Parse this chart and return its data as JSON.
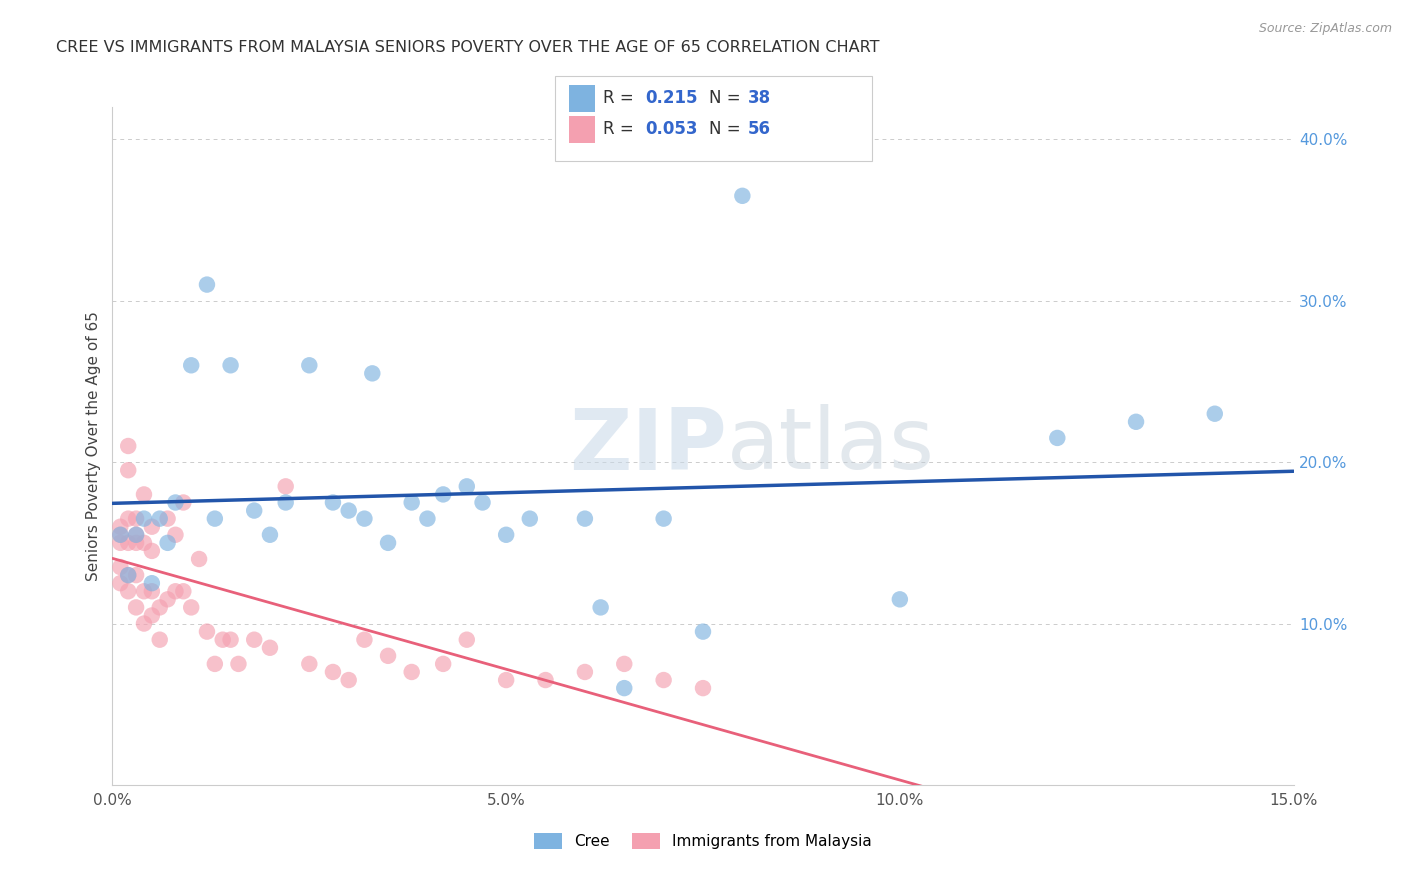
{
  "title": "CREE VS IMMIGRANTS FROM MALAYSIA SENIORS POVERTY OVER THE AGE OF 65 CORRELATION CHART",
  "source": "Source: ZipAtlas.com",
  "ylabel": "Seniors Poverty Over the Age of 65",
  "xlim": [
    0,
    0.15
  ],
  "ylim": [
    0,
    0.42
  ],
  "x_ticks": [
    0.0,
    0.05,
    0.1,
    0.15
  ],
  "x_tick_labels": [
    "0.0%",
    "5.0%",
    "10.0%",
    "15.0%"
  ],
  "y_ticks_right": [
    0.1,
    0.2,
    0.3,
    0.4
  ],
  "y_tick_labels_right": [
    "10.0%",
    "20.0%",
    "30.0%",
    "40.0%"
  ],
  "cree_R": 0.215,
  "cree_N": 38,
  "malaysia_R": 0.053,
  "malaysia_N": 56,
  "cree_color": "#7EB3E0",
  "malaysia_color": "#F4A0B0",
  "cree_line_color": "#2255AA",
  "malaysia_line_color": "#E8607A",
  "cree_x": [
    0.001,
    0.002,
    0.003,
    0.004,
    0.005,
    0.006,
    0.007,
    0.008,
    0.01,
    0.012,
    0.013,
    0.015,
    0.018,
    0.02,
    0.022,
    0.025,
    0.028,
    0.03,
    0.032,
    0.033,
    0.035,
    0.038,
    0.04,
    0.042,
    0.045,
    0.047,
    0.05,
    0.053,
    0.06,
    0.062,
    0.065,
    0.07,
    0.075,
    0.08,
    0.1,
    0.12,
    0.13,
    0.14
  ],
  "cree_y": [
    0.155,
    0.13,
    0.155,
    0.165,
    0.125,
    0.165,
    0.15,
    0.175,
    0.26,
    0.31,
    0.165,
    0.26,
    0.17,
    0.155,
    0.175,
    0.26,
    0.175,
    0.17,
    0.165,
    0.255,
    0.15,
    0.175,
    0.165,
    0.18,
    0.185,
    0.175,
    0.155,
    0.165,
    0.165,
    0.11,
    0.06,
    0.165,
    0.095,
    0.365,
    0.115,
    0.215,
    0.225,
    0.23
  ],
  "malaysia_x": [
    0.001,
    0.001,
    0.001,
    0.001,
    0.001,
    0.002,
    0.002,
    0.002,
    0.002,
    0.002,
    0.002,
    0.003,
    0.003,
    0.003,
    0.003,
    0.003,
    0.004,
    0.004,
    0.004,
    0.004,
    0.005,
    0.005,
    0.005,
    0.005,
    0.006,
    0.006,
    0.007,
    0.007,
    0.008,
    0.008,
    0.009,
    0.009,
    0.01,
    0.011,
    0.012,
    0.013,
    0.014,
    0.015,
    0.016,
    0.018,
    0.02,
    0.022,
    0.025,
    0.028,
    0.03,
    0.032,
    0.035,
    0.038,
    0.042,
    0.045,
    0.05,
    0.055,
    0.06,
    0.065,
    0.07,
    0.075
  ],
  "malaysia_y": [
    0.125,
    0.135,
    0.15,
    0.155,
    0.16,
    0.12,
    0.13,
    0.15,
    0.165,
    0.195,
    0.21,
    0.11,
    0.13,
    0.15,
    0.155,
    0.165,
    0.1,
    0.12,
    0.15,
    0.18,
    0.105,
    0.12,
    0.145,
    0.16,
    0.09,
    0.11,
    0.115,
    0.165,
    0.12,
    0.155,
    0.12,
    0.175,
    0.11,
    0.14,
    0.095,
    0.075,
    0.09,
    0.09,
    0.075,
    0.09,
    0.085,
    0.185,
    0.075,
    0.07,
    0.065,
    0.09,
    0.08,
    0.07,
    0.075,
    0.09,
    0.065,
    0.065,
    0.07,
    0.075,
    0.065,
    0.06
  ],
  "watermark_zip": "ZIP",
  "watermark_atlas": "atlas",
  "legend_labels": [
    "Cree",
    "Immigrants from Malaysia"
  ],
  "background_color": "#FFFFFF",
  "grid_color": "#CCCCCC"
}
